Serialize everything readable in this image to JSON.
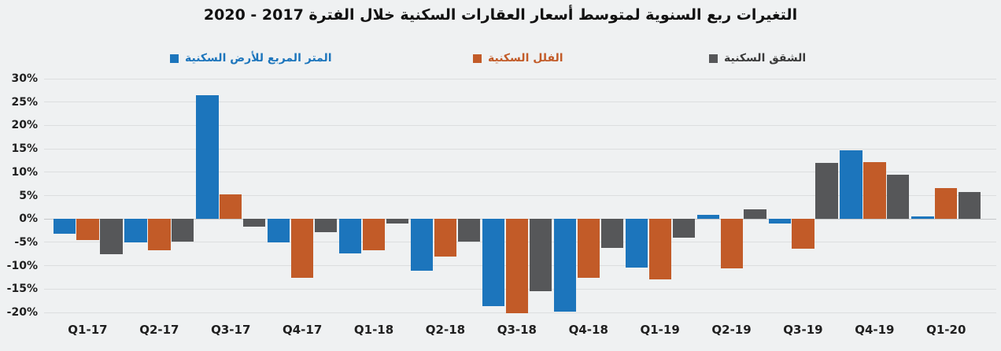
{
  "chart_data": {
    "type": "bar",
    "title": "التغيرات ربع السنوية لمتوسط أسعار العقارات السكنية خلال الفترة 2017 - 2020",
    "categories": [
      "Q1-17",
      "Q2-17",
      "Q3-17",
      "Q4-17",
      "Q1-18",
      "Q2-18",
      "Q3-18",
      "Q4-18",
      "Q1-19",
      "Q2-19",
      "Q3-19",
      "Q4-19",
      "Q1-20"
    ],
    "series": [
      {
        "key": "land-sqm",
        "name": "المتر المربع للأرض السكنية",
        "color": "#1c75bc",
        "label_color": "#1c75bc",
        "values": [
          -3.1,
          -5.1,
          26.5,
          -5.0,
          -7.4,
          -11.1,
          -18.7,
          -19.8,
          -10.4,
          0.8,
          -0.9,
          14.6,
          0.6
        ]
      },
      {
        "key": "villas",
        "name": "الفلل السكنية",
        "color": "#c25b28",
        "label_color": "#c25b28",
        "values": [
          -4.5,
          -6.7,
          5.3,
          -12.6,
          -6.7,
          -8.1,
          -20.1,
          -12.6,
          -13.0,
          -10.6,
          -6.4,
          12.1,
          6.6
        ]
      },
      {
        "key": "apartments",
        "name": "الشقق السكنية",
        "color": "#565759",
        "label_color": "#3a3a3a",
        "values": [
          -7.6,
          -4.8,
          -1.6,
          -2.9,
          -1.0,
          -4.8,
          -15.5,
          -6.2,
          -4.0,
          2.0,
          12.0,
          9.4,
          5.8
        ]
      }
    ],
    "ylim": [
      -20,
      30
    ],
    "ytick_step": 5,
    "ytick_labels": [
      "30%",
      "25%",
      "20%",
      "15%",
      "10%",
      "5%",
      "0%",
      "-5%",
      "-10%",
      "-15%",
      "-20%"
    ],
    "grid": true,
    "legend_position": "top",
    "background_color": "#eff1f2",
    "gridline_color": "#dcdedf",
    "zero_line_color": "#c4c6c8",
    "text_color": "#1f1f1f"
  }
}
